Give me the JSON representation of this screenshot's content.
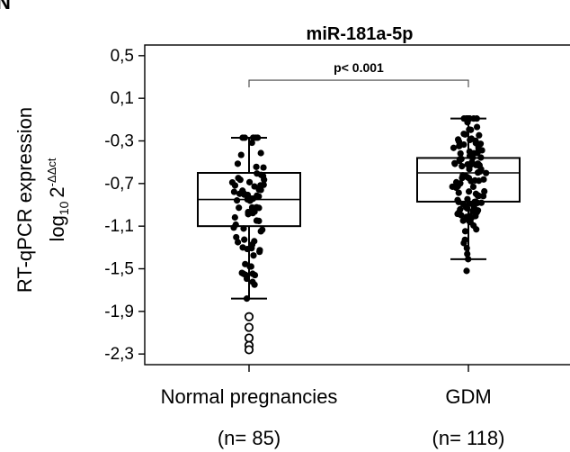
{
  "panel_letter": "N",
  "chart_data": {
    "type": "box",
    "title": "miR-181a-5p",
    "ylabel": "RT-qPCR expression",
    "ylabel_formula": {
      "base": "log",
      "sub": "10",
      "num": "2",
      "sup": "-ΔΔct"
    },
    "ylim": [
      -2.4,
      0.6
    ],
    "yticks": [
      0.5,
      0.1,
      -0.3,
      -0.7,
      -1.1,
      -1.5,
      -1.9,
      -2.3
    ],
    "ytick_labels": [
      "0,5",
      "0,1",
      "-0,3",
      "-0,7",
      "-1,1",
      "-1,5",
      "-1,9",
      "-2,3"
    ],
    "grid": false,
    "categories": [
      "Normal pregnancies",
      "GDM"
    ],
    "sample_sizes": [
      "(n= 85)",
      "(n= 118)"
    ],
    "boxes": [
      {
        "name": "Normal pregnancies",
        "whisker_low": -1.78,
        "q1": -1.1,
        "median": -0.85,
        "q3": -0.6,
        "whisker_high": -0.27,
        "outliers": [
          -1.95,
          -2.05,
          -2.15,
          -2.22,
          -2.26
        ]
      },
      {
        "name": "GDM",
        "whisker_low": -1.41,
        "q1": -0.87,
        "median": -0.6,
        "q3": -0.46,
        "whisker_high": -0.09,
        "outliers": []
      }
    ],
    "significance": {
      "label": "p< 0.001",
      "between": [
        0,
        1
      ],
      "y": 0.27
    }
  }
}
